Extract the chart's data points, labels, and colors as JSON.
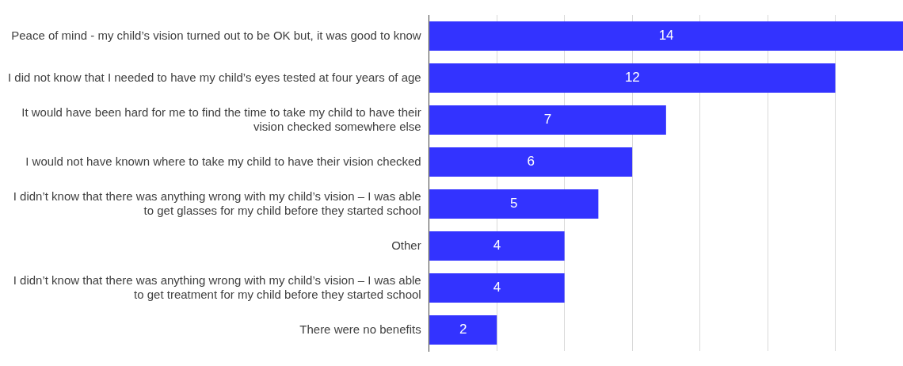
{
  "chart_data": {
    "type": "bar",
    "orientation": "horizontal",
    "categories": [
      "Peace of mind - my child’s vision turned out to be OK but, it was good to know",
      "I did not know that I needed to have my child’s eyes tested at four years of age",
      "It would have been hard for me to find the time to take my child to have their vision checked somewhere else",
      "I would not have known where to take my child to have their vision checked",
      "I didn’t know that there was anything wrong with my child’s vision – I was able to get glasses for my child before they started school",
      "Other",
      "I didn’t know that there was anything wrong with my child’s vision – I was able to get treatment for my child before they started school",
      "There were no benefits"
    ],
    "values": [
      14,
      12,
      7,
      6,
      5,
      4,
      4,
      2
    ],
    "color": "#3333ff",
    "xlim": [
      0,
      14
    ],
    "xticks": [
      {
        "value": 0,
        "label": null
      },
      {
        "value": 2,
        "label": null
      },
      {
        "value": 4,
        "label": null
      },
      {
        "value": 6,
        "label": null
      },
      {
        "value": 8,
        "label": null
      },
      {
        "value": 10,
        "label": null
      },
      {
        "value": 12,
        "label": null
      }
    ],
    "grid": "x",
    "tick_labels": "y",
    "data_labels": true,
    "legend": false
  }
}
